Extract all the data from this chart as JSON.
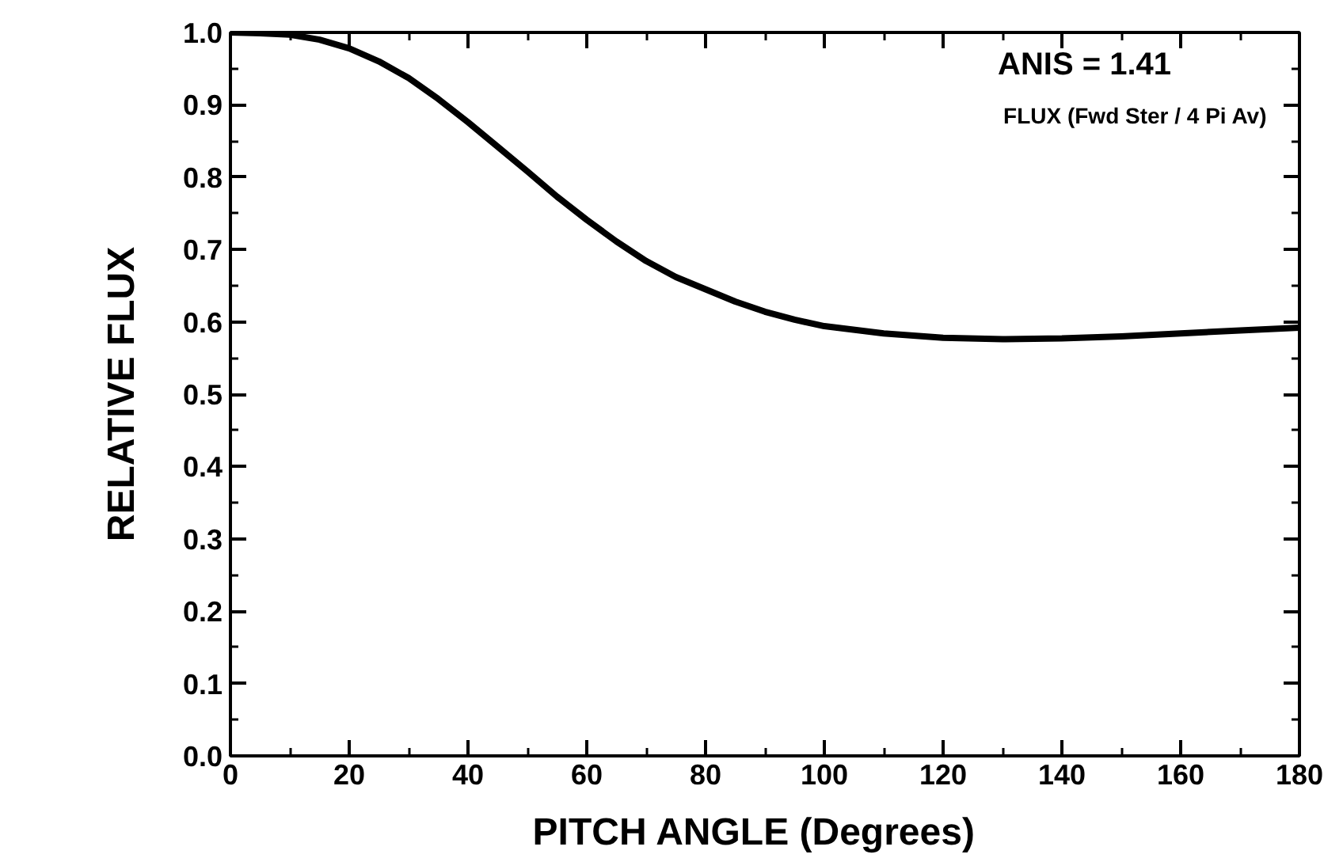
{
  "chart_data": {
    "type": "line",
    "xlabel": "PITCH  ANGLE  (Degrees)",
    "ylabel": "RELATIVE FLUX",
    "annotations": [
      "ANIS = 1.41",
      "FLUX (Fwd Ster / 4 Pi Av)"
    ],
    "x": [
      0,
      5,
      10,
      15,
      20,
      25,
      30,
      35,
      40,
      45,
      50,
      55,
      60,
      65,
      70,
      75,
      80,
      85,
      90,
      95,
      100,
      110,
      120,
      130,
      140,
      150,
      160,
      170,
      180
    ],
    "series": [
      {
        "color": "#000000",
        "values": [
          1.0,
          0.999,
          0.997,
          0.99,
          0.978,
          0.96,
          0.937,
          0.908,
          0.876,
          0.842,
          0.808,
          0.773,
          0.741,
          0.711,
          0.684,
          0.662,
          0.645,
          0.628,
          0.614,
          0.603,
          0.594,
          0.584,
          0.578,
          0.576,
          0.577,
          0.58,
          0.584,
          0.588,
          0.592
        ]
      }
    ],
    "xlim": [
      0,
      180
    ],
    "ylim": [
      0,
      1.0
    ],
    "xticks": [
      0,
      20,
      40,
      60,
      80,
      100,
      120,
      140,
      160,
      180
    ],
    "yticks": [
      {
        "value": 0,
        "label": "0.0"
      },
      0.1,
      0.2,
      0.3,
      0.4,
      0.5,
      0.6,
      0.7,
      0.8,
      0.9,
      {
        "value": 1,
        "label": "1.0"
      }
    ],
    "grid": false,
    "marker": "none",
    "line_style": "solid"
  }
}
